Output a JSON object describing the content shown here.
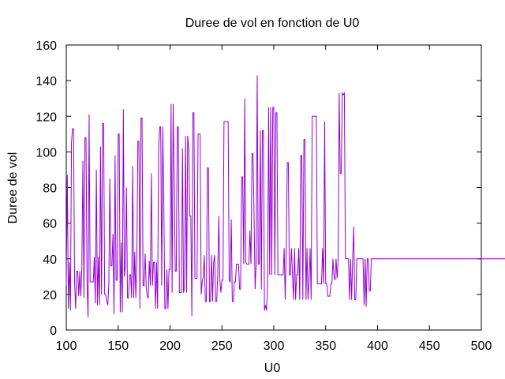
{
  "chart_data": {
    "type": "line",
    "title": "Duree de vol en fonction de U0",
    "xlabel": "U0",
    "ylabel": "Duree de vol",
    "xlim": [
      100,
      500
    ],
    "ylim": [
      0,
      160
    ],
    "x_ticks": [
      "100",
      "150",
      "200",
      "250",
      "300",
      "350",
      "400",
      "450",
      "500"
    ],
    "y_ticks": [
      "0",
      "20",
      "40",
      "60",
      "80",
      "100",
      "120",
      "140",
      "160"
    ],
    "grid": false,
    "legend": "none",
    "line_color": "#9400d3",
    "series": [
      {
        "x_start": 100,
        "x_step": 1,
        "values": [
          25,
          87,
          12,
          38,
          11,
          105,
          113,
          113,
          27,
          12,
          33,
          33,
          19,
          33,
          19,
          35,
          95,
          18,
          108,
          108,
          27,
          7,
          121,
          27,
          27,
          27,
          27,
          41,
          15,
          90,
          14,
          41,
          14,
          103,
          20,
          116,
          116,
          20,
          20,
          16,
          14,
          25,
          85,
          36,
          36,
          54,
          9,
          98,
          28,
          28,
          110,
          110,
          10,
          49,
          10,
          124,
          30,
          36,
          80,
          18,
          18,
          31,
          31,
          18,
          92,
          18,
          44,
          18,
          40,
          106,
          106,
          12,
          119,
          119,
          25,
          25,
          43,
          25,
          19,
          18,
          39,
          25,
          88,
          25,
          38,
          38,
          12,
          38,
          12,
          101,
          114,
          114,
          25,
          114,
          70,
          12,
          12,
          34,
          12,
          34,
          34,
          127,
          21,
          127,
          83,
          33,
          33,
          114,
          114,
          21,
          21,
          21,
          102,
          21,
          24,
          109,
          21,
          109,
          102,
          64,
          64,
          8,
          122,
          122,
          29,
          29,
          29,
          110,
          110,
          110,
          20,
          27,
          30,
          42,
          16,
          16,
          91,
          91,
          16,
          16,
          42,
          16,
          38,
          42,
          16,
          16,
          32,
          64,
          28,
          21,
          28,
          28,
          117,
          117,
          117,
          117,
          117,
          28,
          27,
          62,
          16,
          16,
          27,
          27,
          37,
          37,
          37,
          23,
          23,
          86,
          86,
          37,
          130,
          38,
          37,
          37,
          37,
          56,
          37,
          99,
          99,
          63,
          23,
          37,
          143,
          37,
          37,
          112,
          23,
          112,
          112,
          11,
          14,
          11,
          25,
          125,
          31,
          125,
          31,
          125,
          125,
          31,
          122,
          122,
          31,
          31,
          31,
          31,
          31,
          31,
          46,
          17,
          46,
          94,
          94,
          31,
          31,
          46,
          31,
          17,
          46,
          17,
          31,
          31,
          46,
          17,
          98,
          98,
          17,
          107,
          107,
          17,
          46,
          17,
          28,
          46,
          17,
          120,
          120,
          120,
          120,
          120,
          26,
          26,
          26,
          26,
          26,
          46,
          26,
          117,
          26,
          26,
          19,
          19,
          19,
          26,
          26,
          40,
          30,
          28,
          40,
          29,
          40,
          133,
          88,
          88,
          133,
          132,
          133,
          40,
          40,
          40,
          40,
          17,
          40,
          17,
          40,
          58,
          17,
          17,
          40,
          40,
          40,
          40,
          40,
          40,
          40,
          14,
          40,
          13,
          40,
          40,
          22,
          22,
          40,
          40,
          40,
          40,
          40,
          40,
          40,
          40,
          40,
          40,
          40,
          40,
          40,
          40,
          40,
          40,
          40,
          40,
          40,
          40,
          40,
          40,
          40,
          40,
          40,
          40,
          40,
          40,
          40,
          40,
          40,
          40,
          40,
          40,
          40,
          40,
          40,
          40,
          40,
          40,
          40,
          40,
          40,
          40,
          40,
          40,
          40,
          40,
          40,
          40,
          40,
          40,
          40,
          40,
          40,
          40,
          40,
          40,
          40,
          40,
          40,
          40,
          40,
          40,
          40,
          40,
          40,
          40,
          40,
          40,
          40,
          40,
          40,
          40,
          40,
          40,
          40,
          40,
          40,
          40,
          40,
          40,
          40,
          40,
          40,
          40,
          40,
          40,
          40,
          40,
          40,
          40,
          40,
          40,
          40,
          40,
          40,
          40,
          40,
          40,
          40,
          40,
          40,
          40,
          40,
          40,
          40,
          40,
          40,
          40,
          40,
          40,
          40,
          40,
          40,
          40,
          40,
          40,
          40,
          40,
          40,
          40,
          40,
          40,
          40,
          40,
          40,
          40,
          40,
          40,
          40,
          40,
          40,
          40,
          40,
          40,
          40,
          40,
          40,
          40,
          40,
          40,
          40,
          40,
          40,
          40,
          40,
          40,
          40,
          40
        ]
      }
    ]
  }
}
